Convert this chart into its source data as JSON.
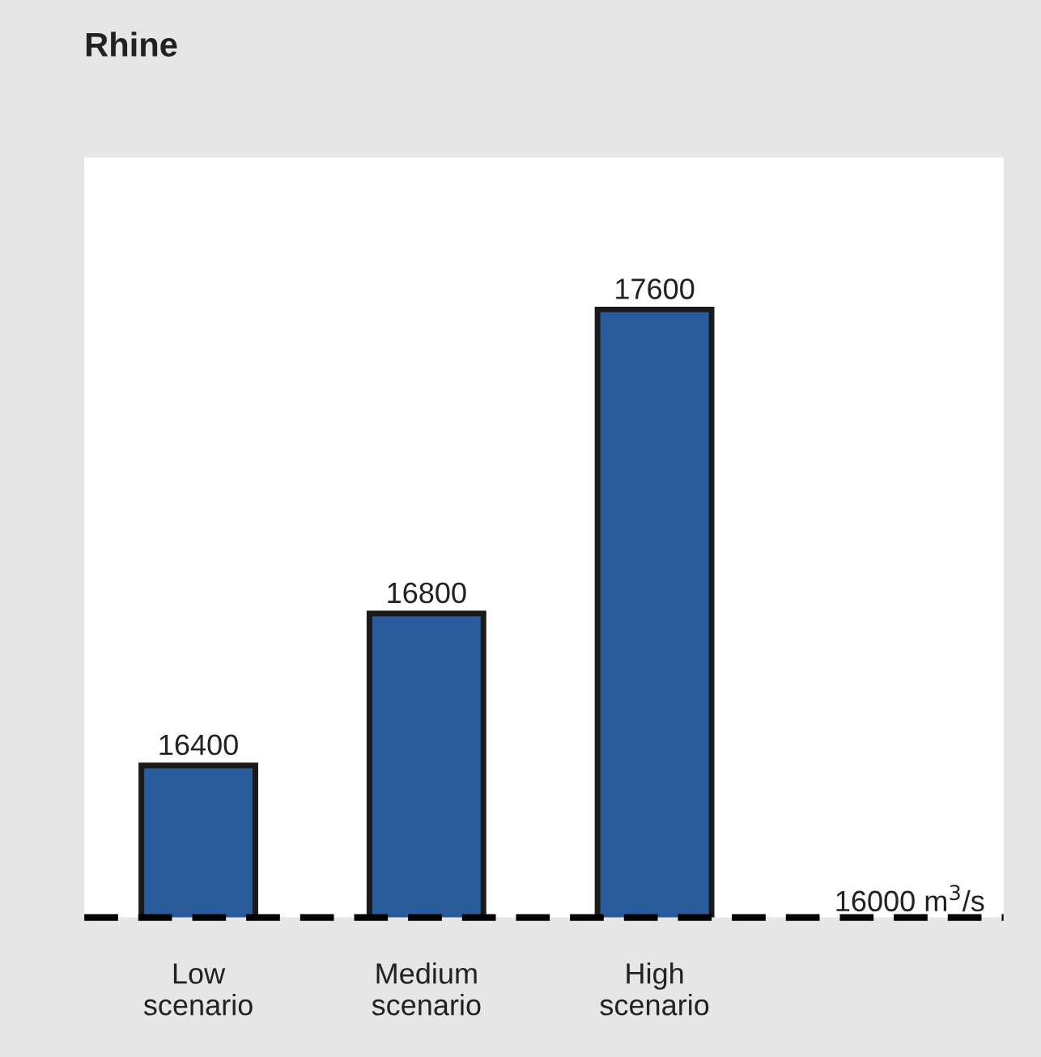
{
  "chart_data": {
    "type": "bar",
    "title": "Rhine",
    "categories": [
      "Low scenario",
      "Medium scenario",
      "High scenario"
    ],
    "values": [
      16400,
      16800,
      17600
    ],
    "color": "#2a5b9b",
    "ylim": [
      16000,
      18000
    ],
    "data_labels": true,
    "grid": false,
    "legend": false,
    "ref_lines": [
      {
        "axis": "y",
        "value": 16000,
        "label": "16000 m$^{3}$/s",
        "color": "#000000",
        "line_style": "dashed"
      }
    ]
  }
}
